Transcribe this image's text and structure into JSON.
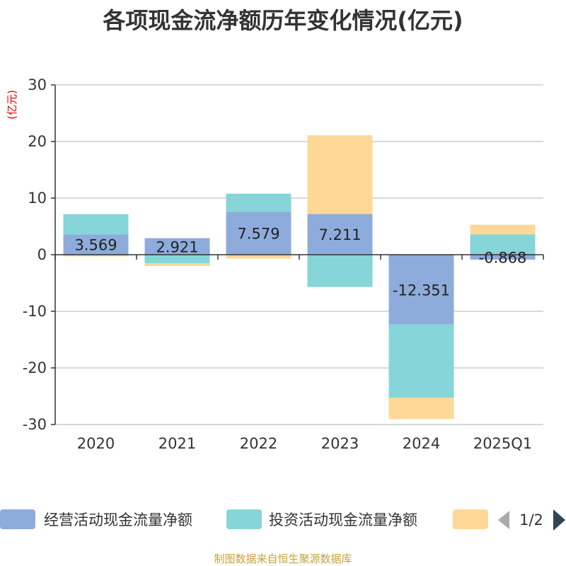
{
  "title": "各项现金流净额历年变化情况(亿元)",
  "source": "制图数据来自恒生聚源数据库",
  "chart_data": {
    "type": "bar",
    "stacked": true,
    "unit": "(亿元)",
    "categories": [
      "2020",
      "2021",
      "2022",
      "2023",
      "2024",
      "2025Q1"
    ],
    "ylim": [
      -30,
      30
    ],
    "yticks": [
      30,
      20,
      10,
      0,
      -10,
      -20,
      -30
    ],
    "grid": true,
    "series": [
      {
        "name": "经营活动现金流量净额",
        "color": "#8eacdb",
        "values": [
          3.569,
          2.921,
          7.579,
          7.211,
          -12.351,
          -0.868
        ],
        "labels": [
          "3.569",
          "2.921",
          "7.579",
          "7.211",
          "-12.351",
          "-0.868"
        ]
      },
      {
        "name": "投资活动现金流量净额",
        "color": "#86d5d8",
        "values": [
          3.6,
          -1.5,
          3.2,
          -5.7,
          -12.9,
          3.6
        ]
      },
      {
        "name": "",
        "color": "#ffd898",
        "values": [
          -0.3,
          -0.5,
          -0.7,
          13.9,
          -3.8,
          1.7
        ]
      }
    ],
    "legend": {
      "position": "bottom",
      "page": "1/2"
    }
  }
}
